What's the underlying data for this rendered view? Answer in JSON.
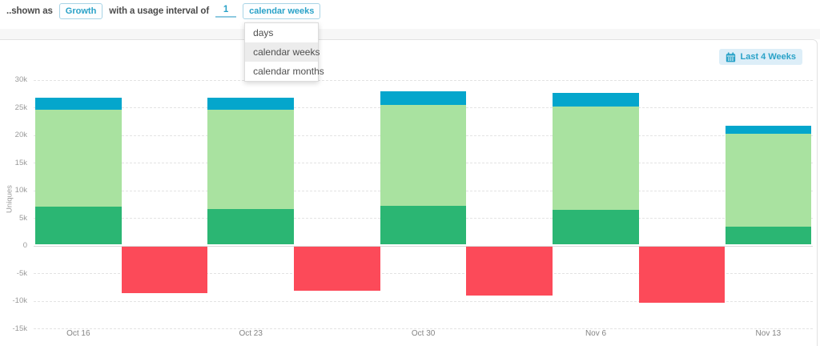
{
  "topbar": {
    "prefix": "..shown as",
    "metric_button": "Growth",
    "middle_text": "with a usage interval of",
    "interval_value": "1",
    "unit_button": "calendar weeks"
  },
  "dropdown": {
    "options": [
      "days",
      "calendar weeks",
      "calendar months"
    ],
    "selected": "calendar weeks"
  },
  "date_range": {
    "label": "Last 4 Weeks",
    "icon": "calendar-icon"
  },
  "colors": {
    "accent": "#2aa2c8",
    "accent_border": "#a8d4e6",
    "range_button_bg": "#ddeef8",
    "dropdown_highlight": "#ececec",
    "bar_blue": "#04a6cc",
    "bar_light_green": "#a9e2a0",
    "bar_dark_green": "#2bb673",
    "bar_red": "#fc4a59"
  },
  "chart_data": {
    "type": "bar",
    "stacked": true,
    "title": "",
    "xlabel": "",
    "ylabel": "Uniques",
    "categories": [
      "Oct 16",
      "Oct 23",
      "Oct 30",
      "Nov 6",
      "Nov 13"
    ],
    "yticks": [
      "30k",
      "25k",
      "20k",
      "15k",
      "10k",
      "5k",
      "0",
      "-5k",
      "-10k",
      "-15k"
    ],
    "ylim": [
      -15000,
      30000
    ],
    "grid": "horizontal-dashed",
    "legend": "none",
    "layout_note": "positive stacked bar and negative red bar sit side-by-side within each weekly slot; last week's red bar is cut off by the right edge",
    "series": [
      {
        "name": "dark-green-bottom",
        "color": "#2bb673",
        "values": [
          6900,
          6400,
          7000,
          6300,
          3200
        ]
      },
      {
        "name": "light-green-middle",
        "color": "#a9e2a0",
        "values": [
          17500,
          18000,
          18300,
          18700,
          16900
        ]
      },
      {
        "name": "blue-top",
        "color": "#04a6cc",
        "values": [
          2200,
          2200,
          2500,
          2400,
          1400
        ]
      },
      {
        "name": "red-negative",
        "color": "#fc4a59",
        "values": [
          -8500,
          -8000,
          -8900,
          -10200,
          null
        ]
      }
    ]
  }
}
